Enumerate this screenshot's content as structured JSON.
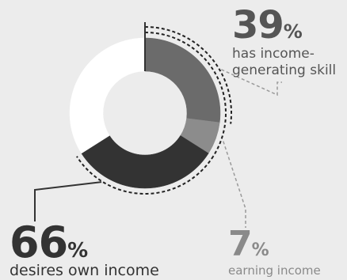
{
  "chart_data": {
    "type": "pie",
    "variant": "donut",
    "categories": [
      "has income-generating skill",
      "earning income",
      "desires own income"
    ],
    "values": [
      39,
      7,
      66
    ],
    "unit": "%",
    "slices": [
      {
        "value": 27,
        "color": "#6b6b6b",
        "label": "has income-generating skill"
      },
      {
        "value": 7,
        "color": "#8c8c8c",
        "label": "earning income"
      },
      {
        "value": 32,
        "color": "#333333",
        "label": "desires own income"
      },
      {
        "value": 34,
        "color": "#ffffff",
        "label": ""
      }
    ]
  },
  "labels": {
    "skill": {
      "number": "39",
      "pct": "%",
      "text": "has income-generating skill"
    },
    "earning": {
      "number": "7",
      "pct": "%",
      "text": "earning income"
    },
    "desire": {
      "number": "66",
      "pct": "%",
      "text": "desires own income"
    }
  },
  "colors": {
    "background": "#ececec",
    "skill": "#6b6b6b",
    "earning": "#8c8c8c",
    "desire": "#333333",
    "remainder": "#ffffff",
    "leader": "#9a9a9a"
  }
}
